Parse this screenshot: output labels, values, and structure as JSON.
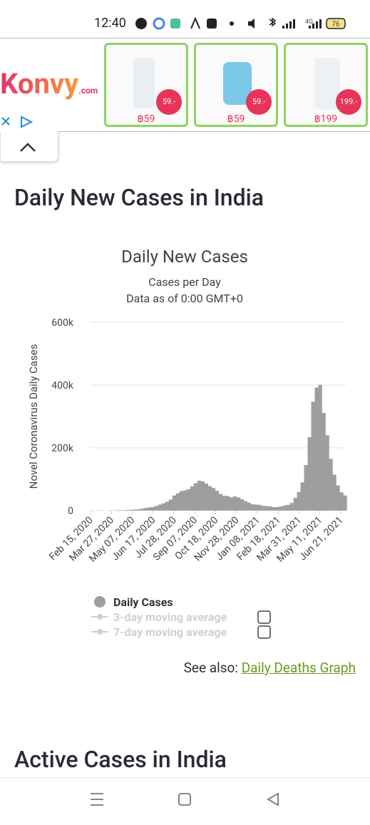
{
  "status_bar": {
    "time": "12:40",
    "network": "4G",
    "battery": "76"
  },
  "ad": {
    "brand": "Konvy",
    "brand_suffix": ".com",
    "products": [
      {
        "badge": "59.-",
        "price": "฿59"
      },
      {
        "badge": "59.-",
        "price": "฿59"
      },
      {
        "badge": "199.-",
        "price": "฿199"
      }
    ]
  },
  "page": {
    "heading": "Daily New Cases in India",
    "see_also": "See also:",
    "see_also_link": "Daily Deaths Graph",
    "next_heading": "Active Cases in India"
  },
  "chart_data": {
    "type": "bar",
    "title": "Daily New Cases",
    "subtitle": "Cases per Day",
    "note": "Data as of 0:00 GMT+0",
    "y_label": "Novel Coronavirus Daily Cases",
    "x": [
      "2020-02-15",
      "2020-02-22",
      "2020-02-29",
      "2020-03-07",
      "2020-03-14",
      "2020-03-21",
      "2020-03-28",
      "2020-04-04",
      "2020-04-11",
      "2020-04-18",
      "2020-04-25",
      "2020-05-02",
      "2020-05-09",
      "2020-05-16",
      "2020-05-23",
      "2020-05-30",
      "2020-06-06",
      "2020-06-13",
      "2020-06-20",
      "2020-06-27",
      "2020-07-04",
      "2020-07-11",
      "2020-07-18",
      "2020-07-25",
      "2020-08-01",
      "2020-08-08",
      "2020-08-15",
      "2020-08-22",
      "2020-08-29",
      "2020-09-05",
      "2020-09-12",
      "2020-09-19",
      "2020-09-26",
      "2020-10-03",
      "2020-10-10",
      "2020-10-17",
      "2020-10-24",
      "2020-10-31",
      "2020-11-07",
      "2020-11-14",
      "2020-11-21",
      "2020-11-28",
      "2020-12-05",
      "2020-12-12",
      "2020-12-19",
      "2020-12-26",
      "2021-01-02",
      "2021-01-09",
      "2021-01-16",
      "2021-01-23",
      "2021-01-30",
      "2021-02-06",
      "2021-02-13",
      "2021-02-20",
      "2021-02-27",
      "2021-03-06",
      "2021-03-13",
      "2021-03-20",
      "2021-03-27",
      "2021-04-03",
      "2021-04-10",
      "2021-04-17",
      "2021-04-24",
      "2021-05-01",
      "2021-05-08",
      "2021-05-15",
      "2021-05-22",
      "2021-05-29",
      "2021-06-05",
      "2021-06-12",
      "2021-06-19",
      "2021-06-26"
    ],
    "series": [
      {
        "name": "Daily Cases",
        "color": "#9e9e9e",
        "values": [
          0,
          0,
          0,
          0,
          0,
          0,
          0,
          1000,
          1000,
          1000,
          2000,
          2000,
          3000,
          4000,
          6000,
          8000,
          10000,
          11000,
          15000,
          19000,
          23000,
          28000,
          35000,
          48000,
          55000,
          62000,
          64000,
          68000,
          77000,
          87000,
          95000,
          93000,
          86000,
          78000,
          72000,
          63000,
          53000,
          47000,
          46000,
          42000,
          45000,
          42000,
          36000,
          30000,
          25000,
          20000,
          19000,
          18000,
          15000,
          14000,
          13000,
          11000,
          11000,
          13000,
          16000,
          18000,
          24000,
          40000,
          59000,
          90000,
          145000,
          234000,
          347000,
          392000,
          401000,
          311000,
          240000,
          165000,
          114000,
          80000,
          58000,
          48000
        ]
      },
      {
        "name": "3-day moving average",
        "color": "#d0d0d0"
      },
      {
        "name": "7-day moving average",
        "color": "#d0d0d0"
      }
    ],
    "xlim": [
      "2020-02-15",
      "2021-07-01"
    ],
    "xticks": [
      {
        "value": "2020-02-15",
        "label": "Feb 15, 2020"
      },
      {
        "value": "2020-03-27",
        "label": "Mar 27, 2020"
      },
      {
        "value": "2020-05-07",
        "label": "May 07, 2020"
      },
      {
        "value": "2020-06-17",
        "label": "Jun 17, 2020"
      },
      {
        "value": "2020-07-28",
        "label": "Jul 28, 2020"
      },
      {
        "value": "2020-09-07",
        "label": "Sep 07, 2020"
      },
      {
        "value": "2020-10-18",
        "label": "Oct 18, 2020"
      },
      {
        "value": "2020-11-28",
        "label": "Nov 28, 2020"
      },
      {
        "value": "2021-01-08",
        "label": "Jan 08, 2021"
      },
      {
        "value": "2021-02-18",
        "label": "Feb 18, 2021"
      },
      {
        "value": "2021-03-31",
        "label": "Mar 31, 2021"
      },
      {
        "value": "2021-05-11",
        "label": "May 11, 2021"
      },
      {
        "value": "2021-06-21",
        "label": "Jun 21, 2021"
      }
    ],
    "ylim": [
      0,
      600000
    ],
    "yticks": [
      0,
      {
        "value": 200000,
        "label": "200k"
      },
      {
        "value": 400000,
        "label": "400k"
      },
      {
        "value": 600000,
        "label": "600k"
      }
    ],
    "grid": true
  }
}
